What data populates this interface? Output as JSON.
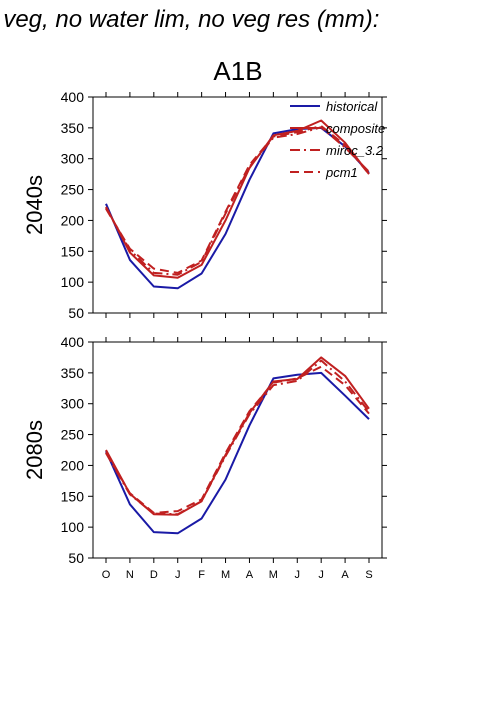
{
  "page": {
    "title": "f veg, no water lim, no veg res (mm):"
  },
  "chart_data": {
    "type": "line",
    "title": "A1B",
    "months": [
      "O",
      "N",
      "D",
      "J",
      "F",
      "M",
      "A",
      "M",
      "J",
      "J",
      "A",
      "S"
    ],
    "ylim": [
      50,
      400
    ],
    "yticks": [
      50,
      100,
      150,
      200,
      250,
      300,
      350,
      400
    ],
    "grid": false,
    "legend_position": "top-right",
    "legend": [
      {
        "name": "historical",
        "color": "#1a1aa6",
        "dash": "solid"
      },
      {
        "name": "composite",
        "color": "#c02020",
        "dash": "solid"
      },
      {
        "name": "miroc_3.2",
        "color": "#c02020",
        "dash": "dashdot"
      },
      {
        "name": "pcm1",
        "color": "#c02020",
        "dash": "dashed"
      }
    ],
    "panels": [
      {
        "label": "2040s",
        "series": [
          {
            "name": "historical",
            "values": [
              227,
              136,
              93,
              90,
              114,
              178,
              266,
              341,
              348,
              350,
              320,
              277
            ]
          },
          {
            "name": "composite",
            "values": [
              222,
              148,
              111,
              107,
              128,
              200,
              285,
              338,
              345,
              362,
              326,
              275
            ]
          },
          {
            "name": "miroc_3.2",
            "values": [
              220,
              152,
              115,
              112,
              133,
              211,
              287,
              334,
              340,
              351,
              318,
              279
            ]
          },
          {
            "name": "pcm1",
            "values": [
              219,
              154,
              122,
              115,
              135,
              214,
              290,
              336,
              343,
              353,
              322,
              275
            ]
          }
        ]
      },
      {
        "label": "2080s",
        "series": [
          {
            "name": "historical",
            "values": [
              223,
              137,
              92,
              90,
              114,
              177,
              265,
              341,
              347,
              350,
              313,
              275
            ]
          },
          {
            "name": "composite",
            "values": [
              225,
              154,
              121,
              120,
              142,
              217,
              285,
              336,
              340,
              375,
              345,
              292
            ]
          },
          {
            "name": "miroc_3.2",
            "values": [
              220,
              153,
              122,
              121,
              142,
              215,
              283,
              330,
              337,
              370,
              336,
              287
            ]
          },
          {
            "name": "pcm1",
            "values": [
              221,
              155,
              123,
              126,
              145,
              220,
              288,
              334,
              341,
              360,
              330,
              284
            ]
          }
        ]
      }
    ]
  }
}
